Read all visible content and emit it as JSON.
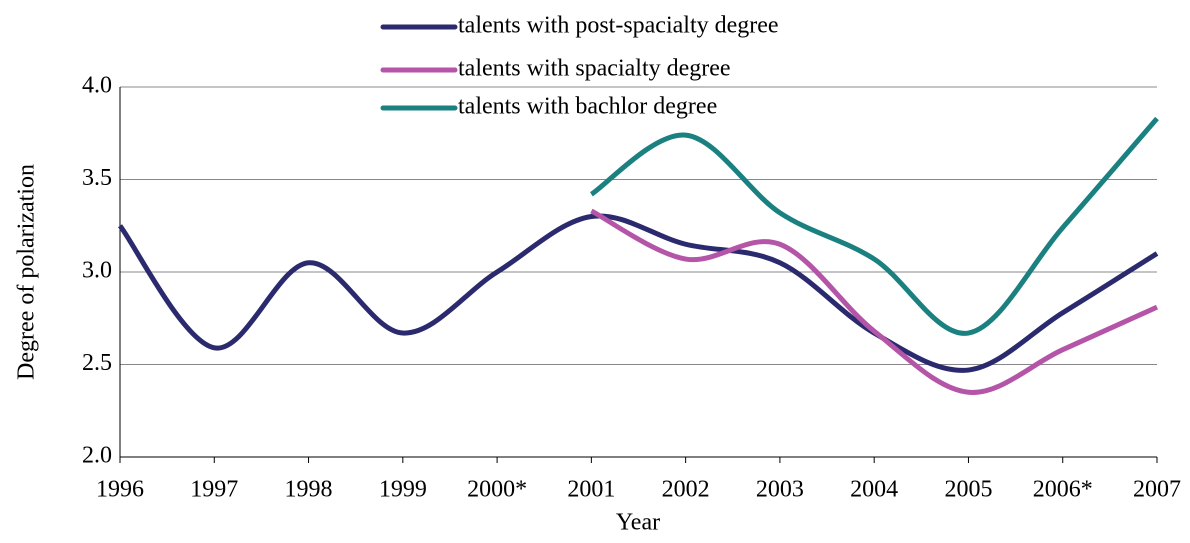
{
  "chart_data": {
    "type": "line",
    "x_label": "Year",
    "y_label": "Degree of polarization",
    "categories": [
      "1996",
      "1997",
      "1998",
      "1999",
      "2000*",
      "2001",
      "2002",
      "2003",
      "2004",
      "2005",
      "2006*",
      "2007"
    ],
    "series": [
      {
        "name": "talents with post-spacialty degree",
        "color": "#2b2a6e",
        "values": [
          3.25,
          2.59,
          3.05,
          2.67,
          3.0,
          3.3,
          3.15,
          3.05,
          2.67,
          2.47,
          2.78,
          3.1
        ]
      },
      {
        "name": "talents with spacialty degree",
        "color": "#b455a8",
        "values": [
          null,
          null,
          null,
          null,
          null,
          3.33,
          3.07,
          3.15,
          2.68,
          2.35,
          2.58,
          2.81
        ]
      },
      {
        "name": "talents with bachlor degree",
        "color": "#1a8080",
        "values": [
          null,
          null,
          null,
          null,
          null,
          3.42,
          3.74,
          3.32,
          3.07,
          2.67,
          3.24,
          3.83
        ]
      }
    ],
    "ylim": [
      2,
      4
    ],
    "yticks": [
      {
        "value": 2,
        "label": "2.0"
      },
      2.5,
      {
        "value": 3,
        "label": "3.0"
      },
      3.5,
      {
        "value": 4,
        "label": "4.0"
      }
    ],
    "grid": true,
    "legend": "top"
  }
}
